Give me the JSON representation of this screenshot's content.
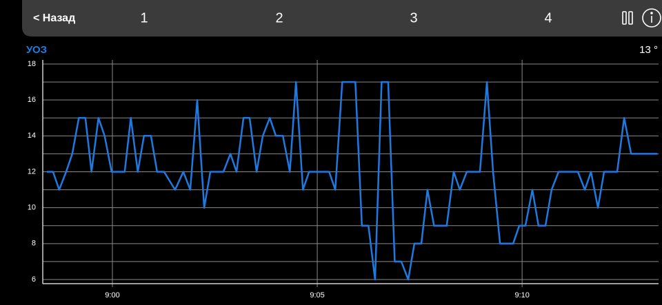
{
  "header": {
    "back": "< Назад",
    "tabs": [
      "1",
      "2",
      "3",
      "4"
    ]
  },
  "panel": {
    "label": "УОЗ",
    "current": "13 °"
  },
  "chart_data": {
    "type": "line",
    "x": [
      -1.6,
      -1.45,
      -1.3,
      -1.13,
      -0.98,
      -0.82,
      -0.66,
      -0.51,
      -0.34,
      -0.19,
      -0.02,
      0.13,
      0.3,
      0.45,
      0.62,
      0.77,
      0.94,
      1.09,
      1.26,
      1.53,
      1.73,
      1.9,
      2.07,
      2.24,
      2.39,
      2.54,
      2.71,
      2.88,
      3.03,
      3.2,
      3.35,
      3.52,
      3.67,
      3.84,
      3.99,
      4.16,
      4.33,
      4.48,
      4.65,
      4.8,
      4.95,
      5.12,
      5.29,
      5.44,
      5.61,
      5.76,
      5.93,
      6.09,
      6.25,
      6.41,
      6.57,
      6.73,
      6.89,
      7.05,
      7.22,
      7.37,
      7.54,
      7.69,
      7.85,
      8.01,
      8.16,
      8.33,
      8.48,
      8.65,
      8.8,
      8.97,
      9.14,
      9.29,
      9.46,
      9.61,
      9.78,
      9.93,
      10.08,
      10.25,
      10.4,
      10.57,
      10.72,
      10.89,
      11.04,
      11.21,
      11.36,
      11.53,
      11.68,
      11.85,
      12.0,
      12.17,
      12.32,
      12.49,
      12.66,
      12.81,
      12.98,
      13.13,
      13.3
    ],
    "series": [
      {
        "color": "#1f7ae0",
        "values": [
          12,
          12,
          11,
          12,
          13,
          15,
          15,
          12,
          15,
          14,
          12,
          12,
          12,
          15,
          12,
          14,
          14,
          12,
          12,
          11,
          12,
          11,
          16,
          10,
          12,
          12,
          12,
          13,
          12,
          15,
          15,
          12,
          14,
          15,
          14,
          14,
          12,
          17,
          11,
          12,
          12,
          12,
          12,
          11,
          17,
          17,
          17,
          9,
          9,
          6,
          17,
          17,
          7,
          7,
          6,
          8,
          8,
          11,
          9,
          9,
          9,
          12,
          11,
          12,
          12,
          12,
          17,
          12,
          8,
          8,
          8,
          9,
          9,
          11,
          9,
          9,
          11,
          12,
          12,
          12,
          12,
          11,
          12,
          10,
          12,
          12,
          12,
          15,
          13,
          13,
          13,
          13,
          13
        ]
      }
    ],
    "xlim": [
      -1.7,
      13.33
    ],
    "xticks": [
      {
        "value": 0,
        "label": "9:00"
      },
      {
        "value": 5,
        "label": "9:05"
      },
      {
        "value": 10,
        "label": "9:10"
      }
    ],
    "ylim": [
      5.77,
      18.23
    ],
    "yticks": [
      6,
      8,
      10,
      12,
      14,
      16,
      18
    ],
    "minor_yticks": [
      7,
      9,
      11,
      13,
      15,
      17
    ],
    "grid": true
  }
}
